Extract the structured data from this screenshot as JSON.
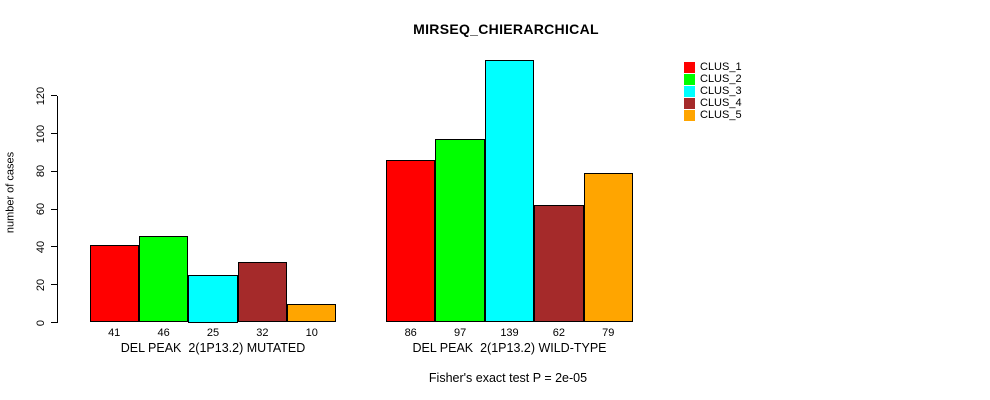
{
  "title": "MIRSEQ_CHIERARCHICAL",
  "footnote": "Fisher's exact test P = 2e-05",
  "legend": {
    "items": [
      {
        "label": "CLUS_1",
        "color": "#ff0000"
      },
      {
        "label": "CLUS_2",
        "color": "#00ff00"
      },
      {
        "label": "CLUS_3",
        "color": "#00ffff"
      },
      {
        "label": "CLUS_4",
        "color": "#a52a2a"
      },
      {
        "label": "CLUS_5",
        "color": "#ffa500"
      }
    ]
  },
  "chart_data": {
    "type": "bar",
    "title": "MIRSEQ_CHIERARCHICAL",
    "xlabel": "",
    "ylabel": "number of cases",
    "footnote": "Fisher's exact test P = 2e-05",
    "series": [
      "CLUS_1",
      "CLUS_2",
      "CLUS_3",
      "CLUS_4",
      "CLUS_5"
    ],
    "colors": [
      "#ff0000",
      "#00ff00",
      "#00ffff",
      "#a52a2a",
      "#ffa500"
    ],
    "groups": [
      {
        "label": "DEL PEAK  2(1P13.2) MUTATED",
        "values": [
          41,
          46,
          25,
          32,
          10
        ]
      },
      {
        "label": "DEL PEAK  2(1P13.2) WILD-TYPE",
        "values": [
          86,
          97,
          139,
          62,
          79
        ]
      }
    ],
    "yticks": [
      0,
      20,
      40,
      60,
      80,
      100,
      120
    ],
    "ylim": [
      0,
      139
    ],
    "grid": false,
    "bar_value_labels_shown": true,
    "legend_position": "top-right"
  }
}
